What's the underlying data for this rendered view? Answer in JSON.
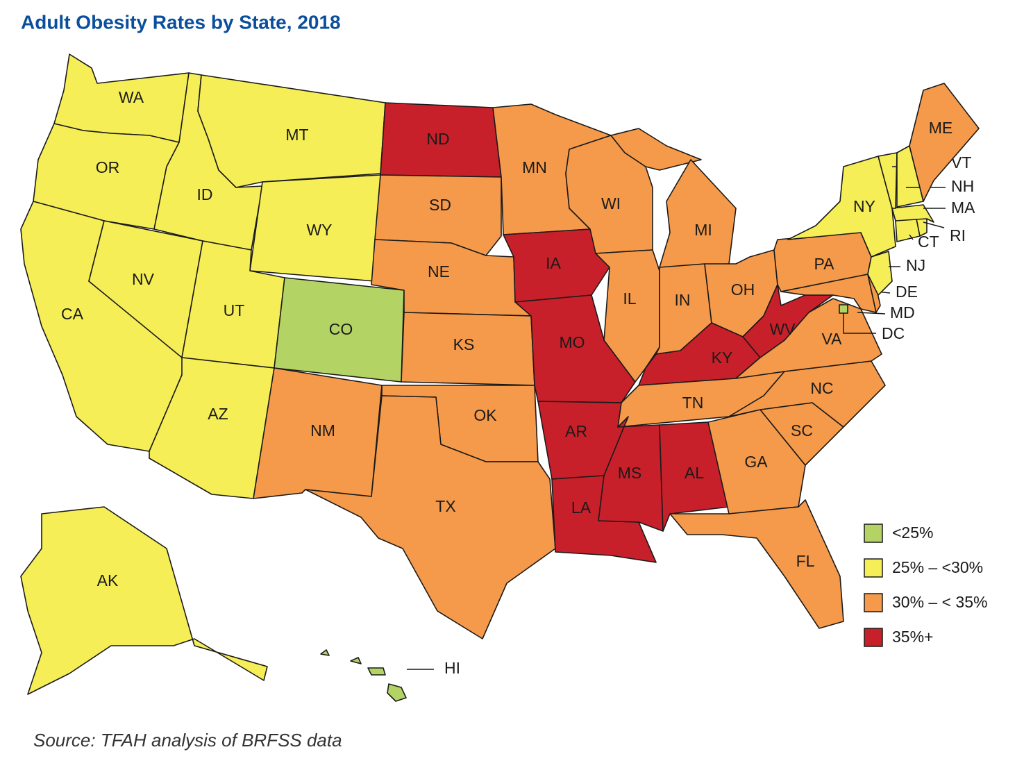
{
  "title": "Adult Obesity Rates by State, 2018",
  "source": "Source: TFAH analysis of BRFSS data",
  "legend": [
    {
      "label": "<25%",
      "color": "#b3d465"
    },
    {
      "label": "25% – <30%",
      "color": "#f5ee57"
    },
    {
      "label": "30% – < 35%",
      "color": "#f59a4a"
    },
    {
      "label": "35%+",
      "color": "#c8202a"
    }
  ],
  "states": [
    {
      "label": "WA",
      "color": "#f5ee57"
    },
    {
      "label": "OR",
      "color": "#f5ee57"
    },
    {
      "label": "CA",
      "color": "#f5ee57"
    },
    {
      "label": "NV",
      "color": "#f5ee57"
    },
    {
      "label": "ID",
      "color": "#f5ee57"
    },
    {
      "label": "MT",
      "color": "#f5ee57"
    },
    {
      "label": "WY",
      "color": "#f5ee57"
    },
    {
      "label": "UT",
      "color": "#f5ee57"
    },
    {
      "label": "CO",
      "color": "#b3d465"
    },
    {
      "label": "AZ",
      "color": "#f5ee57"
    },
    {
      "label": "NM",
      "color": "#f59a4a"
    },
    {
      "label": "ND",
      "color": "#c8202a"
    },
    {
      "label": "SD",
      "color": "#f59a4a"
    },
    {
      "label": "NE",
      "color": "#f59a4a"
    },
    {
      "label": "KS",
      "color": "#f59a4a"
    },
    {
      "label": "OK",
      "color": "#f59a4a"
    },
    {
      "label": "TX",
      "color": "#f59a4a"
    },
    {
      "label": "MN",
      "color": "#f59a4a"
    },
    {
      "label": "IA",
      "color": "#c8202a"
    },
    {
      "label": "MO",
      "color": "#c8202a"
    },
    {
      "label": "AR",
      "color": "#c8202a"
    },
    {
      "label": "LA",
      "color": "#c8202a"
    },
    {
      "label": "WI",
      "color": "#f59a4a"
    },
    {
      "label": "IL",
      "color": "#f59a4a"
    },
    {
      "label": "MI",
      "color": "#f59a4a"
    },
    {
      "label": "IN",
      "color": "#f59a4a"
    },
    {
      "label": "OH",
      "color": "#f59a4a"
    },
    {
      "label": "KY",
      "color": "#c8202a"
    },
    {
      "label": "TN",
      "color": "#f59a4a"
    },
    {
      "label": "MS",
      "color": "#c8202a"
    },
    {
      "label": "AL",
      "color": "#c8202a"
    },
    {
      "label": "GA",
      "color": "#f59a4a"
    },
    {
      "label": "FL",
      "color": "#f59a4a"
    },
    {
      "label": "SC",
      "color": "#f59a4a"
    },
    {
      "label": "NC",
      "color": "#f59a4a"
    },
    {
      "label": "VA",
      "color": "#f59a4a"
    },
    {
      "label": "WV",
      "color": "#c8202a"
    },
    {
      "label": "PA",
      "color": "#f59a4a"
    },
    {
      "label": "NY",
      "color": "#f5ee57"
    },
    {
      "label": "MD",
      "color": "#f59a4a"
    },
    {
      "label": "DE",
      "color": "#f59a4a"
    },
    {
      "label": "NJ",
      "color": "#f5ee57"
    },
    {
      "label": "CT",
      "color": "#f5ee57"
    },
    {
      "label": "RI",
      "color": "#f5ee57"
    },
    {
      "label": "MA",
      "color": "#f5ee57"
    },
    {
      "label": "VT",
      "color": "#f5ee57"
    },
    {
      "label": "NH",
      "color": "#f5ee57"
    },
    {
      "label": "ME",
      "color": "#f59a4a"
    },
    {
      "label": "DC",
      "color": "#b3d465"
    },
    {
      "label": "AK",
      "color": "#f5ee57"
    },
    {
      "label": "HI",
      "color": "#b3d465"
    }
  ]
}
